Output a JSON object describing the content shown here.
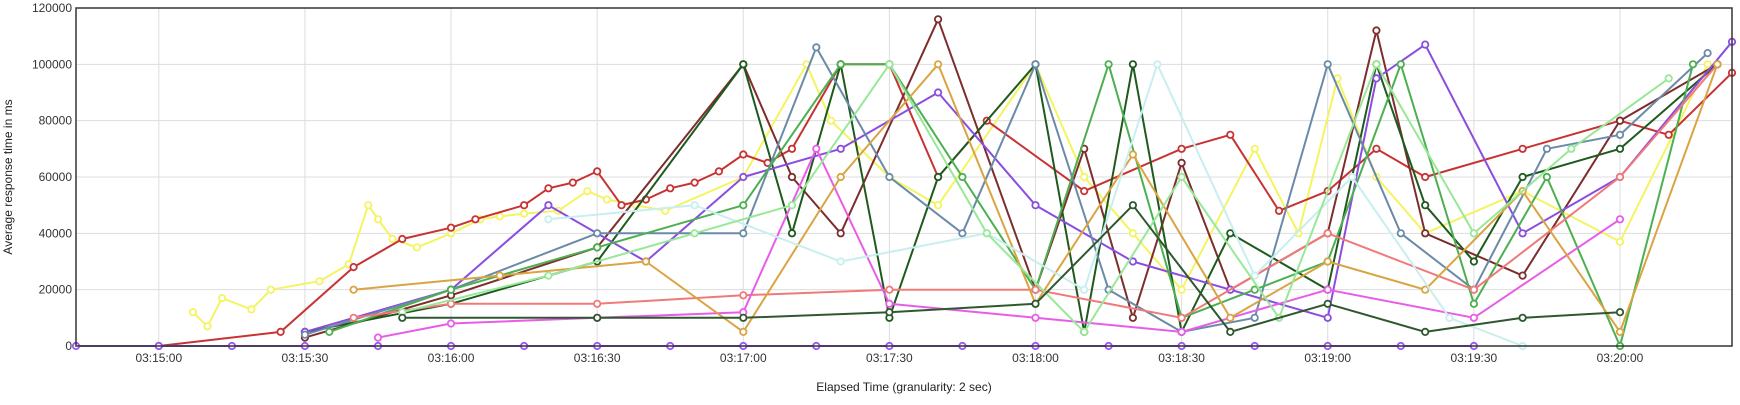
{
  "chart_data": {
    "type": "line",
    "xlabel": "Elapsed Time (granularity: 2 sec)",
    "ylabel": "Average response time in ms",
    "ylim": [
      0,
      120000
    ],
    "xlim": [
      "03:14:43",
      "03:20:23"
    ],
    "x_ticks": [
      "03:15:00",
      "03:15:30",
      "03:16:00",
      "03:16:30",
      "03:17:00",
      "03:17:30",
      "03:18:00",
      "03:18:30",
      "03:19:00",
      "03:19:30",
      "03:20:00"
    ],
    "y_ticks": [
      0,
      20000,
      40000,
      60000,
      80000,
      100000,
      120000
    ],
    "y_tick_labels": [
      "0",
      "20000",
      "40000",
      "60000",
      "80000",
      "100000",
      "120000"
    ],
    "grid": true,
    "legend": "none",
    "series": [
      {
        "color": "#f4f461",
        "x": [
          "03:15:07",
          "03:15:10",
          "03:15:13",
          "03:15:19",
          "03:15:23",
          "03:15:33",
          "03:15:39",
          "03:15:43",
          "03:15:45",
          "03:15:48",
          "03:15:53",
          "03:16:00",
          "03:16:06",
          "03:16:10",
          "03:16:15",
          "03:16:22",
          "03:16:28",
          "03:16:32",
          "03:16:38",
          "03:16:44",
          "03:17:00",
          "03:17:13",
          "03:17:18",
          "03:17:30",
          "03:17:40",
          "03:18:00",
          "03:18:10",
          "03:18:20",
          "03:18:30",
          "03:18:45",
          "03:18:54",
          "03:19:02",
          "03:19:10",
          "03:19:20",
          "03:19:40",
          "03:20:00",
          "03:20:18"
        ],
        "y": [
          12000,
          7000,
          17000,
          13000,
          20000,
          23000,
          29000,
          50000,
          45000,
          38000,
          35000,
          40000,
          45000,
          46000,
          47000,
          48000,
          55000,
          52000,
          50000,
          48000,
          60000,
          100000,
          80000,
          60000,
          50000,
          100000,
          60000,
          40000,
          20000,
          70000,
          40000,
          95000,
          60000,
          40000,
          55000,
          37000,
          100000
        ]
      },
      {
        "color": "#c83232",
        "x": [
          "03:15:00",
          "03:15:25",
          "03:15:40",
          "03:15:50",
          "03:16:00",
          "03:16:05",
          "03:16:15",
          "03:16:20",
          "03:16:25",
          "03:16:30",
          "03:16:35",
          "03:16:40",
          "03:16:45",
          "03:16:50",
          "03:16:55",
          "03:17:00",
          "03:17:05",
          "03:17:10",
          "03:17:20",
          "03:17:30",
          "03:17:40",
          "03:17:50",
          "03:18:10",
          "03:18:30",
          "03:18:40",
          "03:18:50",
          "03:19:00",
          "03:19:10",
          "03:19:20",
          "03:19:40",
          "03:20:00",
          "03:20:10",
          "03:20:23"
        ],
        "y": [
          0,
          5000,
          28000,
          38000,
          42000,
          45000,
          50000,
          56000,
          58000,
          62000,
          50000,
          52000,
          56000,
          58000,
          62000,
          68000,
          65000,
          70000,
          100000,
          100000,
          60000,
          80000,
          55000,
          70000,
          75000,
          48000,
          55000,
          70000,
          60000,
          70000,
          80000,
          75000,
          97000
        ]
      },
      {
        "color": "#7d2d2d",
        "x": [
          "03:15:30",
          "03:16:00",
          "03:16:30",
          "03:17:00",
          "03:17:10",
          "03:17:20",
          "03:17:40",
          "03:18:00",
          "03:18:10",
          "03:18:20",
          "03:18:30",
          "03:18:40",
          "03:19:00",
          "03:19:10",
          "03:19:20",
          "03:19:40",
          "03:20:00",
          "03:20:20"
        ],
        "y": [
          3000,
          18000,
          35000,
          100000,
          60000,
          40000,
          116000,
          20000,
          70000,
          10000,
          65000,
          20000,
          40000,
          112000,
          40000,
          25000,
          80000,
          100000
        ]
      },
      {
        "color": "#1e5a1e",
        "x": [
          "03:15:30",
          "03:16:00",
          "03:16:30",
          "03:17:00",
          "03:17:10",
          "03:17:20",
          "03:17:30",
          "03:17:40",
          "03:18:00",
          "03:18:10",
          "03:18:20",
          "03:18:30",
          "03:18:40",
          "03:19:00",
          "03:19:10",
          "03:19:20",
          "03:19:30",
          "03:19:40",
          "03:20:00",
          "03:20:20"
        ],
        "y": [
          5000,
          15000,
          30000,
          100000,
          40000,
          100000,
          10000,
          60000,
          100000,
          5000,
          100000,
          5000,
          40000,
          20000,
          100000,
          50000,
          30000,
          60000,
          70000,
          100000
        ]
      },
      {
        "color": "#8a4de0",
        "x": [
          "03:15:30",
          "03:16:00",
          "03:16:20",
          "03:16:40",
          "03:17:00",
          "03:17:20",
          "03:17:40",
          "03:18:00",
          "03:18:20",
          "03:18:40",
          "03:19:00",
          "03:19:10",
          "03:19:20",
          "03:19:40",
          "03:20:00",
          "03:20:23"
        ],
        "y": [
          5000,
          20000,
          50000,
          30000,
          60000,
          70000,
          90000,
          50000,
          30000,
          20000,
          10000,
          95000,
          107000,
          40000,
          60000,
          108000
        ]
      },
      {
        "color": "#6b8aa8",
        "x": [
          "03:15:30",
          "03:16:00",
          "03:16:30",
          "03:17:00",
          "03:17:15",
          "03:17:30",
          "03:17:45",
          "03:18:00",
          "03:18:15",
          "03:18:30",
          "03:18:45",
          "03:19:00",
          "03:19:15",
          "03:19:30",
          "03:19:45",
          "03:20:00",
          "03:20:18"
        ],
        "y": [
          4000,
          20000,
          40000,
          40000,
          106000,
          60000,
          40000,
          100000,
          20000,
          5000,
          10000,
          100000,
          40000,
          20000,
          70000,
          75000,
          104000
        ]
      },
      {
        "color": "#4caf50",
        "x": [
          "03:15:35",
          "03:16:00",
          "03:16:30",
          "03:17:00",
          "03:17:20",
          "03:17:30",
          "03:17:45",
          "03:18:00",
          "03:18:15",
          "03:18:30",
          "03:18:45",
          "03:19:00",
          "03:19:15",
          "03:19:30",
          "03:19:45",
          "03:20:00",
          "03:20:15"
        ],
        "y": [
          5000,
          20000,
          35000,
          50000,
          100000,
          100000,
          60000,
          20000,
          100000,
          10000,
          20000,
          30000,
          100000,
          15000,
          60000,
          0,
          100000
        ]
      },
      {
        "color": "#f07a7a",
        "x": [
          "03:15:40",
          "03:16:00",
          "03:16:30",
          "03:17:00",
          "03:17:30",
          "03:18:00",
          "03:18:30",
          "03:19:00",
          "03:19:30",
          "03:20:00",
          "03:20:20"
        ],
        "y": [
          10000,
          15000,
          15000,
          18000,
          20000,
          20000,
          10000,
          40000,
          20000,
          60000,
          100000
        ]
      },
      {
        "color": "#e85ce8",
        "x": [
          "03:15:45",
          "03:16:00",
          "03:16:30",
          "03:17:00",
          "03:17:15",
          "03:17:30",
          "03:18:00",
          "03:18:30",
          "03:19:00",
          "03:19:30",
          "03:20:00"
        ],
        "y": [
          3000,
          8000,
          10000,
          12000,
          70000,
          15000,
          10000,
          5000,
          20000,
          10000,
          45000
        ]
      },
      {
        "color": "#d9a441",
        "x": [
          "03:15:40",
          "03:16:10",
          "03:16:40",
          "03:17:00",
          "03:17:20",
          "03:17:40",
          "03:18:00",
          "03:18:20",
          "03:18:40",
          "03:19:00",
          "03:19:20",
          "03:19:40",
          "03:20:00",
          "03:20:20"
        ],
        "y": [
          20000,
          25000,
          30000,
          5000,
          60000,
          100000,
          15000,
          68000,
          10000,
          30000,
          20000,
          55000,
          5000,
          100000
        ]
      },
      {
        "color": "#c8eef0",
        "x": [
          "03:16:20",
          "03:16:50",
          "03:17:20",
          "03:17:50",
          "03:18:10",
          "03:18:25",
          "03:18:45",
          "03:19:05",
          "03:19:25",
          "03:19:40"
        ],
        "y": [
          45000,
          50000,
          30000,
          40000,
          20000,
          100000,
          25000,
          60000,
          10000,
          0
        ]
      },
      {
        "color": "#98e898",
        "x": [
          "03:15:50",
          "03:16:20",
          "03:16:50",
          "03:17:10",
          "03:17:30",
          "03:17:50",
          "03:18:10",
          "03:18:30",
          "03:18:50",
          "03:19:10",
          "03:19:30",
          "03:19:50",
          "03:20:10"
        ],
        "y": [
          12000,
          25000,
          40000,
          50000,
          100000,
          40000,
          5000,
          60000,
          10000,
          100000,
          40000,
          70000,
          95000
        ]
      },
      {
        "color": "#305830",
        "x": [
          "03:15:50",
          "03:16:30",
          "03:17:00",
          "03:17:30",
          "03:18:00",
          "03:18:20",
          "03:18:40",
          "03:19:00",
          "03:19:20",
          "03:19:40",
          "03:20:00"
        ],
        "y": [
          10000,
          10000,
          10000,
          12000,
          15000,
          50000,
          5000,
          15000,
          5000,
          10000,
          12000
        ]
      },
      {
        "color": "#9b59f0",
        "x": [
          "03:14:43",
          "03:15:00",
          "03:15:15",
          "03:15:30",
          "03:15:45",
          "03:16:00",
          "03:16:15",
          "03:16:30",
          "03:16:45",
          "03:17:00",
          "03:17:15",
          "03:17:30",
          "03:17:45",
          "03:18:00",
          "03:18:15",
          "03:18:30",
          "03:18:45",
          "03:19:00",
          "03:19:15",
          "03:19:30"
        ],
        "y": [
          0,
          0,
          0,
          0,
          0,
          0,
          0,
          0,
          0,
          0,
          0,
          0,
          0,
          0,
          0,
          0,
          0,
          0,
          0,
          0
        ]
      }
    ]
  }
}
